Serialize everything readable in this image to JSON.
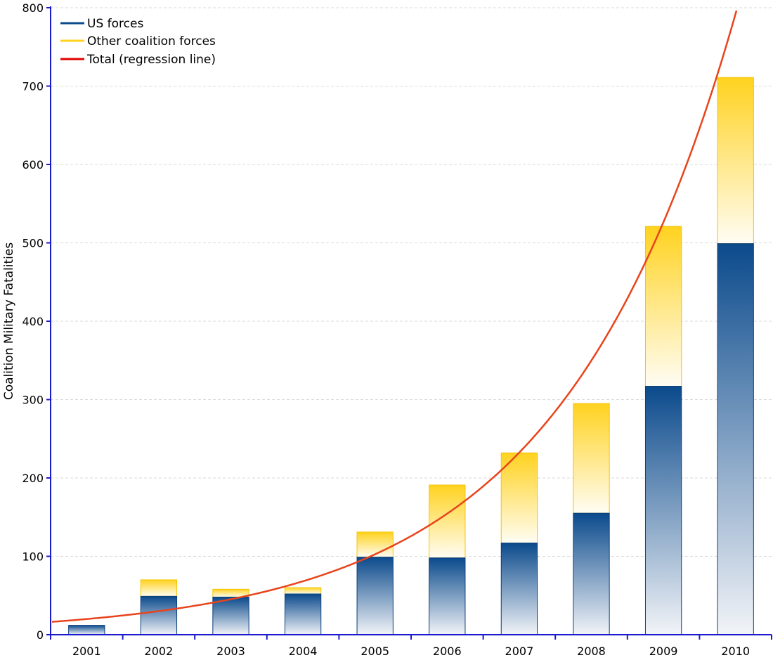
{
  "chart_data": {
    "type": "bar",
    "stacked": true,
    "title": "",
    "xlabel": "",
    "ylabel": "Coalition Military Fatalities",
    "ylim": [
      0,
      800
    ],
    "yticks": [
      0,
      100,
      200,
      300,
      400,
      500,
      600,
      700,
      800
    ],
    "grid": true,
    "legend_position": "top-left",
    "categories": [
      "2001",
      "2002",
      "2003",
      "2004",
      "2005",
      "2006",
      "2007",
      "2008",
      "2009",
      "2010"
    ],
    "series": [
      {
        "name": "US forces",
        "color": "#0b4a8c",
        "values": [
          12,
          49,
          48,
          52,
          99,
          98,
          117,
          155,
          317,
          499
        ]
      },
      {
        "name": "Other coalition forces",
        "color": "#ffd21f",
        "values": [
          0,
          21,
          10,
          8,
          32,
          93,
          115,
          140,
          204,
          212
        ]
      }
    ],
    "regression": {
      "name": "Total (regression line)",
      "color": "#e8441c",
      "type": "exponential",
      "start_value": 20,
      "growth_per_year": 1.505
    }
  }
}
